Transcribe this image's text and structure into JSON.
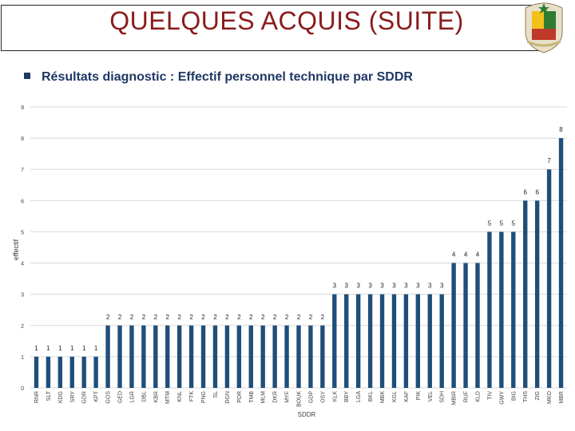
{
  "slide": {
    "title": "QUELQUES ACQUIS (SUITE)",
    "bullet": "Résultats diagnostic : Effectif personnel technique par SDDR"
  },
  "emblem": {
    "icon": "coat-of-arms-icon",
    "colors": {
      "yellow": "#f2c21b",
      "red": "#c0392b",
      "green": "#2e7d32"
    }
  },
  "colors": {
    "title": "#8a1c1c",
    "bullet": "#1f3864",
    "bar": "#1f4e79",
    "grid": "#d9d9d9",
    "text": "#404040"
  },
  "chart_data": {
    "type": "bar",
    "xlabel": "SDDR",
    "ylabel": "effectif",
    "ylim": [
      0,
      9
    ],
    "yticks": [
      0,
      1,
      2,
      3,
      4,
      5,
      6,
      7,
      8,
      9
    ],
    "grid": true,
    "data_labels": true,
    "categories": [
      "RNR",
      "SLT",
      "KDG",
      "SRY",
      "GDR",
      "KPT",
      "GOS",
      "GED",
      "LGR",
      "DBL",
      "KBR",
      "MTM",
      "KNL",
      "FTK",
      "PNG",
      "SL",
      "DGN",
      "PDR",
      "TMB",
      "MLM",
      "DKR",
      "MYF",
      "BOUK",
      "GDP",
      "OSY",
      "KLK",
      "BBY",
      "LGA",
      "BKL",
      "MBK",
      "KGL",
      "KAF",
      "PIK",
      "VEL",
      "SDH",
      "MBIR",
      "RUF",
      "KLD",
      "TIV",
      "GWY",
      "BIG",
      "THS",
      "ZIG",
      "MKO",
      "MBR"
    ],
    "values": [
      1,
      1,
      1,
      1,
      1,
      1,
      2,
      2,
      2,
      2,
      2,
      2,
      2,
      2,
      2,
      2,
      2,
      2,
      2,
      2,
      2,
      2,
      2,
      2,
      2,
      3,
      3,
      3,
      3,
      3,
      3,
      3,
      3,
      3,
      3,
      4,
      4,
      4,
      5,
      5,
      5,
      6,
      6,
      7,
      8
    ]
  }
}
